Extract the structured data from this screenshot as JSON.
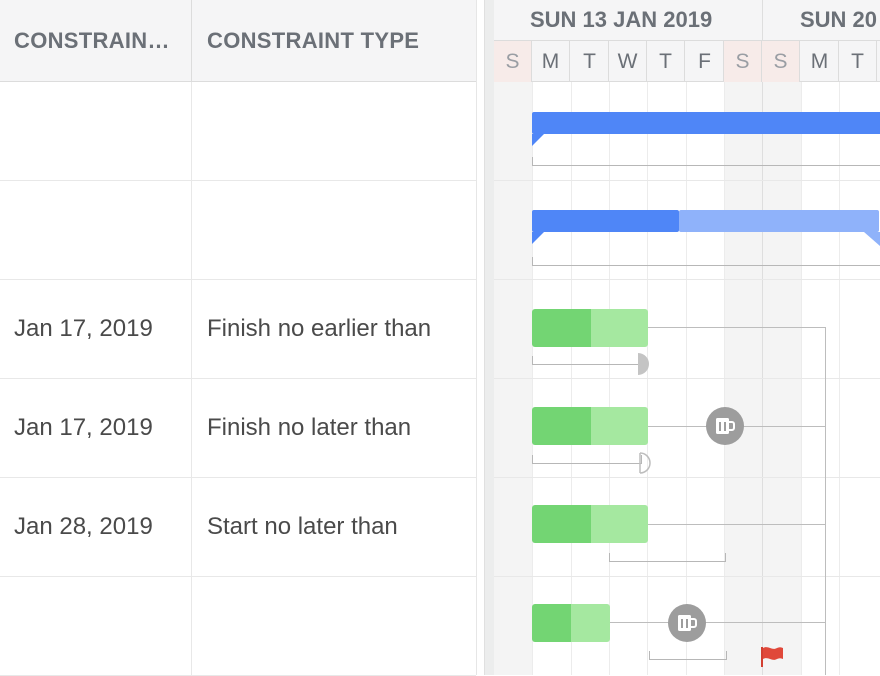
{
  "grid": {
    "columns": [
      "CONSTRAIN…",
      "CONSTRAINT TYPE"
    ],
    "rows": [
      {
        "date": "",
        "type": ""
      },
      {
        "date": "",
        "type": ""
      },
      {
        "date": "Jan 17, 2019",
        "type": "Finish no earlier than"
      },
      {
        "date": "Jan 17, 2019",
        "type": "Finish no later than"
      },
      {
        "date": "Jan 28, 2019",
        "type": "Start no later than"
      },
      {
        "date": "",
        "type": ""
      }
    ]
  },
  "timeline": {
    "weeks": [
      "SUN 13 JAN 2019",
      "SUN 20"
    ],
    "days": [
      "S",
      "M",
      "T",
      "W",
      "T",
      "F",
      "S",
      "S",
      "M",
      "T"
    ]
  },
  "colors": {
    "task_done": "#73d573",
    "task_remaining": "#a5e8a0",
    "summary": "#4f86f7",
    "summary_light": "#8fb2fa",
    "flag": "#e0483a"
  },
  "icons": {
    "milestone": "beer-mug-icon",
    "deadline": "flag-icon"
  }
}
